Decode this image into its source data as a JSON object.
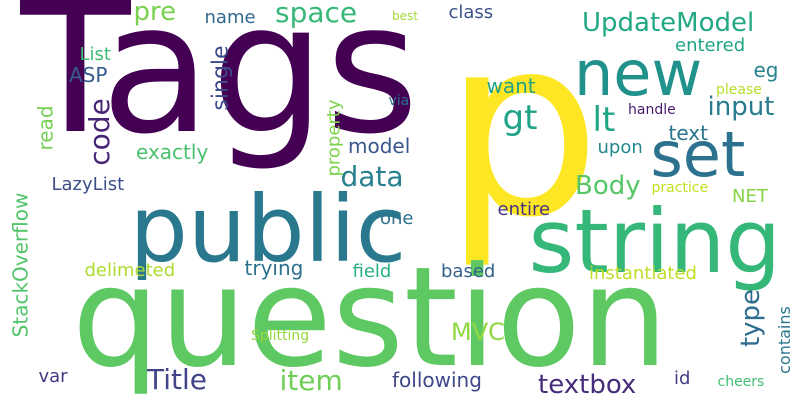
{
  "words": [
    {
      "text": "Tags",
      "color": "#440154"
    },
    {
      "text": "p",
      "color": "#fde725"
    },
    {
      "text": "question",
      "color": "#5ec962"
    },
    {
      "text": "public",
      "color": "#2a788e"
    },
    {
      "text": "string",
      "color": "#35b779"
    },
    {
      "text": "new",
      "color": "#21918c"
    },
    {
      "text": "set",
      "color": "#2c728e"
    },
    {
      "text": "UpdateModel",
      "color": "#22a884"
    },
    {
      "text": "space",
      "color": "#37b878"
    },
    {
      "text": "pre",
      "color": "#7ad151"
    },
    {
      "text": "name",
      "color": "#31688e"
    },
    {
      "text": "class",
      "color": "#3b528b"
    },
    {
      "text": "best",
      "color": "#a0da39"
    },
    {
      "text": "entered",
      "color": "#20a486"
    },
    {
      "text": "eg",
      "color": "#26828e"
    },
    {
      "text": "List",
      "color": "#3fbc73"
    },
    {
      "text": "ASP",
      "color": "#365c8d"
    },
    {
      "text": "single",
      "color": "#3e4a89"
    },
    {
      "text": "read",
      "color": "#75d054"
    },
    {
      "text": "code",
      "color": "#482677"
    },
    {
      "text": "want",
      "color": "#1fa187"
    },
    {
      "text": "gt",
      "color": "#20a386"
    },
    {
      "text": "lt",
      "color": "#21a685"
    },
    {
      "text": "input",
      "color": "#287c8e"
    },
    {
      "text": "please",
      "color": "#b5de2b"
    },
    {
      "text": "handle",
      "color": "#481a6c"
    },
    {
      "text": "via",
      "color": "#2e6e8e"
    },
    {
      "text": "text",
      "color": "#2b748e"
    },
    {
      "text": "upon",
      "color": "#24878e"
    },
    {
      "text": "model",
      "color": "#39568c"
    },
    {
      "text": "exactly",
      "color": "#4ac16d"
    },
    {
      "text": "property",
      "color": "#7fd34e"
    },
    {
      "text": "data",
      "color": "#27808e"
    },
    {
      "text": "Body",
      "color": "#56c667"
    },
    {
      "text": "practice",
      "color": "#c2df23"
    },
    {
      "text": "NET",
      "color": "#86d549"
    },
    {
      "text": "LazyList",
      "color": "#3d4e8a"
    },
    {
      "text": "StackOverflow",
      "color": "#52c569"
    },
    {
      "text": "one",
      "color": "#2d718e"
    },
    {
      "text": "entire",
      "color": "#46327e"
    },
    {
      "text": "delimeted",
      "color": "#addc30"
    },
    {
      "text": "trying",
      "color": "#2d708e"
    },
    {
      "text": "field",
      "color": "#2ab07f"
    },
    {
      "text": "based",
      "color": "#34618d"
    },
    {
      "text": "instantiated",
      "color": "#bddf26"
    },
    {
      "text": "type",
      "color": "#2f6c8e"
    },
    {
      "text": "contains",
      "color": "#2a768e"
    },
    {
      "text": "Splitting",
      "color": "#95d840"
    },
    {
      "text": "MVC",
      "color": "#90d743"
    },
    {
      "text": "var",
      "color": "#443983"
    },
    {
      "text": "Title",
      "color": "#414487"
    },
    {
      "text": "item",
      "color": "#6ece58"
    },
    {
      "text": "following",
      "color": "#3f4889"
    },
    {
      "text": "textbox",
      "color": "#472d7b"
    },
    {
      "text": "id",
      "color": "#433e85"
    },
    {
      "text": "cheers",
      "color": "#40bd72"
    }
  ]
}
